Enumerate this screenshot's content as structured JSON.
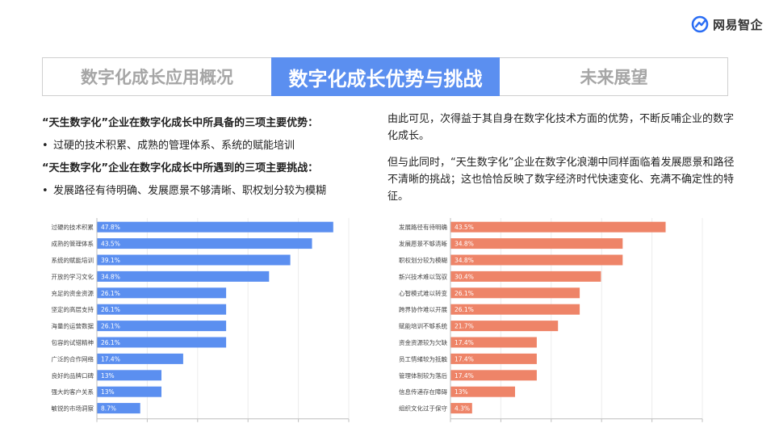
{
  "brand": {
    "name": "网易智企",
    "colors": {
      "blue": "#5b8ff0",
      "salmon": "#ee8468"
    }
  },
  "tabs": [
    {
      "label": "数字化成长应用概况",
      "active": false
    },
    {
      "label": "数字化成长优势与挑战",
      "active": true
    },
    {
      "label": "未来展望",
      "active": false
    }
  ],
  "left_text": {
    "advantages_title": "“天生数字化”企业在数字化成长中所具备的三项主要优势：",
    "advantages_item": "过硬的技术积累、成熟的管理体系、系统的赋能培训",
    "challenges_title": "“天生数字化”企业在数字化成长中所遇到的三项主要挑战：",
    "challenges_item": "发展路径有待明确、发展愿景不够清晰、职权划分较为模糊",
    "bullet": "•"
  },
  "right_text": {
    "p1": "由此可见，次得益于其自身在数字化技术方面的优势，不断反哺企业的数字化成长。",
    "p2": "但与此同时，“天生数字化”企业在数字化浪潮中同样面临着发展愿景和路径不清晰的挑战；这也恰恰反映了数字经济时代快速变化、充满不确定性的特征。"
  },
  "chart_data": [
    {
      "type": "bar",
      "orientation": "horizontal",
      "color": "#5b8ff0",
      "xlim": [
        0,
        50
      ],
      "grid": true,
      "categories": [
        "过硬的技术积累",
        "成熟的管理体系",
        "系统的赋能培训",
        "开放的学习文化",
        "充足的资金资源",
        "坚定的高层支持",
        "海量的运营数据",
        "包容的试错精神",
        "广泛的合作网络",
        "良好的品牌口碑",
        "强大的客户关系",
        "敏锐的市场洞察"
      ],
      "values": [
        47.8,
        43.5,
        39.1,
        34.8,
        26.1,
        26.1,
        26.1,
        26.1,
        17.4,
        13,
        13,
        8.7
      ],
      "labels": [
        "47.8%",
        "43.5%",
        "39.1%",
        "34.8%",
        "26.1%",
        "26.1%",
        "26.1%",
        "26.1%",
        "17.4%",
        "13%",
        "13%",
        "8.7%"
      ]
    },
    {
      "type": "bar",
      "orientation": "horizontal",
      "color": "#ee8468",
      "xlim": [
        0,
        50
      ],
      "grid": true,
      "categories": [
        "发展路径有待明确",
        "发展愿景不够清晰",
        "职权划分较为模糊",
        "新兴技术难以驾驭",
        "心智模式难以转变",
        "跨界协作难以开展",
        "赋能培训不够系统",
        "资金资源较为欠缺",
        "员工情绪较为抵触",
        "管理体制较为落后",
        "信息传递存在障碍",
        "组织文化过于保守"
      ],
      "values": [
        43.5,
        34.8,
        34.8,
        30.4,
        26.1,
        26.1,
        21.7,
        17.4,
        17.4,
        17.4,
        13,
        4.3
      ],
      "labels": [
        "43.5%",
        "34.8%",
        "34.8%",
        "30.4%",
        "26.1%",
        "26.1%",
        "21.7%",
        "17.4%",
        "17.4%",
        "17.4%",
        "13%",
        "4.3%"
      ]
    }
  ]
}
